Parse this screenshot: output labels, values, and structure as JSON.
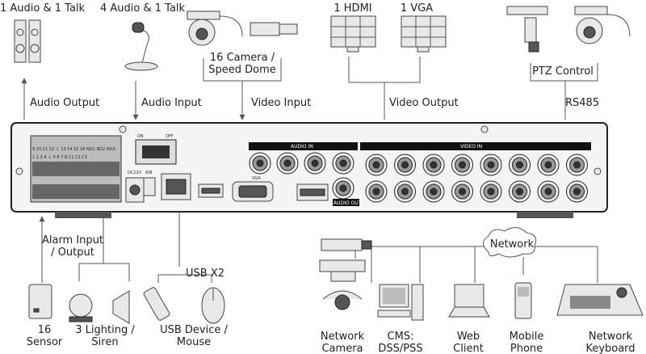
{
  "top": {
    "speaker": "1 Audio  & 1 Talk",
    "mic": "4 Audio & 1 Talk",
    "camera": [
      "16 Camera /",
      "Speed Dome"
    ],
    "hdmi": "1 HDMI",
    "vga": "1 VGA",
    "ptz": "PTZ Control"
  },
  "connections": {
    "audio_output": "Audio  Output",
    "audio_input": "Audio  Input",
    "video_input": "Video Input",
    "video_output": "Video Output",
    "rs485": "RS485",
    "alarm": [
      "Alarm Input",
      "/ Output"
    ],
    "usb": "USB X2",
    "network": "Network"
  },
  "panel": {
    "audio_in": "AUDIO IN",
    "video_in": "VIDEO IN",
    "audio_out": "AUDIO OUT",
    "vga": "VGA",
    "on": "ON",
    "off": "OFF",
    "ab": "A/B",
    "power": "DC12V",
    "terminals_top": "9 10 11 12 ⏚ 13 14 15 16 NO1 NO2 NO3",
    "terminals_bottom": "1 2 3 4 ⏚ 5 6 7 8 C1 C2 C3"
  },
  "bottom": {
    "sensor": [
      "16",
      "Sensor"
    ],
    "lighting": [
      "3 Lighting /",
      "Siren"
    ],
    "usb_device": [
      "USB Device /",
      "Mouse"
    ],
    "network_camera": [
      "Network",
      "Camera"
    ],
    "cms": [
      "CMS:",
      "DSS/PSS"
    ],
    "web": [
      "Web",
      "Client"
    ],
    "mobile": [
      "Mobile",
      "Phone"
    ],
    "keyboard": [
      "Network",
      "Keyboard"
    ]
  }
}
